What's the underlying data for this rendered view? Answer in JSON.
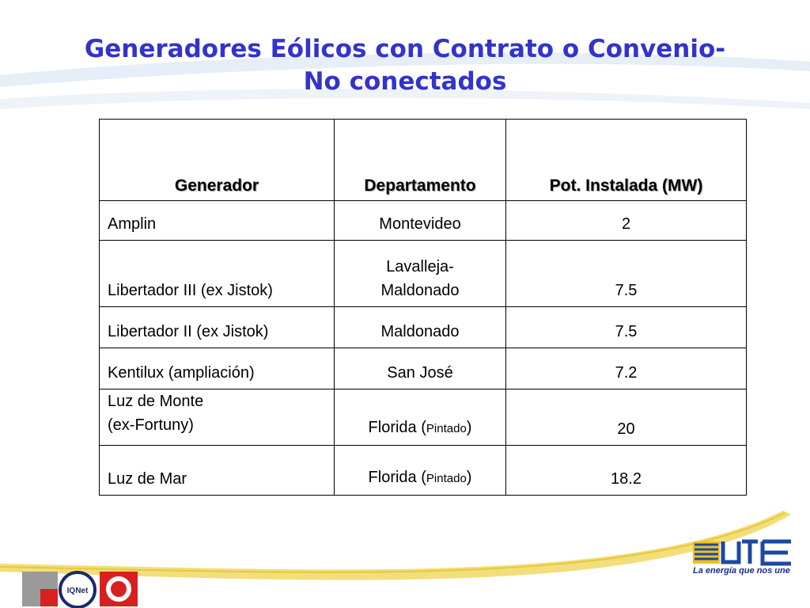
{
  "title": [
    "Generadores Eólicos con Contrato o Convenio-",
    "No conectados"
  ],
  "table": {
    "header": [
      "Generador",
      "Departamento",
      "Pot. Instalada (MW)"
    ],
    "rows": [
      [
        "Amplin",
        "Montevideo",
        "2"
      ],
      [
        "Libertador III (ex Jistok)",
        [
          "Lavalleja-",
          "Maldonado"
        ],
        "7.5"
      ],
      [
        "Libertador II  (ex Jistok)",
        "Maldonado",
        "7.5"
      ],
      [
        "Kentilux (ampliación)",
        "San José",
        "7.2"
      ],
      [
        [
          "Luz de Monte",
          "(ex-Fortuny)"
        ],
        {
          "text": "Florida (",
          "small": "Pintado",
          "close": ")"
        },
        "20"
      ],
      [
        "Luz de Mar",
        {
          "text": "Florida (",
          "small": "Pintado",
          "close": ")"
        },
        "18.2"
      ]
    ]
  },
  "logos": {
    "iqnet": "IQNet",
    "ute_tagline": "La energía que nos une"
  }
}
